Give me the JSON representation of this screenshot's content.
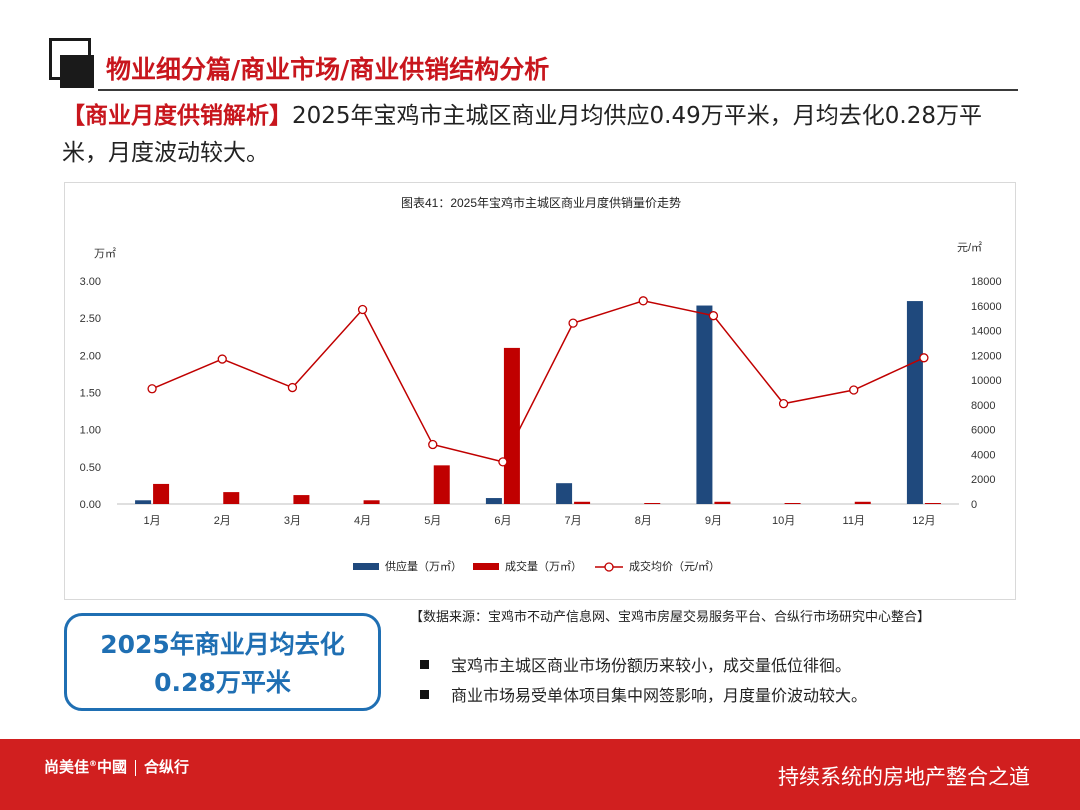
{
  "header": {
    "title": "物业细分篇/商业市场/商业供销结构分析"
  },
  "summary": {
    "tag": "【商业月度供销解析】",
    "text": "2025年宝鸡市主城区商业月均供应0.49万平米，月均去化0.28万平米，月度波动较大。"
  },
  "chart_data": {
    "type": "bar",
    "title": "图表41：2025年宝鸡市主城区商业月度供销量价走势",
    "categories": [
      "1月",
      "2月",
      "3月",
      "4月",
      "5月",
      "6月",
      "7月",
      "8月",
      "9月",
      "10月",
      "11月",
      "12月"
    ],
    "y_left_unit": "万㎡",
    "y_right_unit": "元/㎡",
    "y_left_ticks": [
      "0.00",
      "0.50",
      "1.00",
      "1.50",
      "2.00",
      "2.50",
      "3.00"
    ],
    "y_right_ticks": [
      "0",
      "2000",
      "4000",
      "6000",
      "8000",
      "10000",
      "12000",
      "14000",
      "16000",
      "18000"
    ],
    "ylim_left": [
      0,
      3
    ],
    "ylim_right": [
      0,
      18000
    ],
    "series": [
      {
        "name": "供应量（万㎡）",
        "type": "bar",
        "axis": "left",
        "color": "#1f497d",
        "values": [
          0.05,
          0,
          0,
          0,
          0,
          0.08,
          0.28,
          0,
          2.67,
          0,
          0,
          2.73
        ]
      },
      {
        "name": "成交量（万㎡）",
        "type": "bar",
        "axis": "left",
        "color": "#c00000",
        "values": [
          0.27,
          0.16,
          0.12,
          0.05,
          0.52,
          2.1,
          0.03,
          0.01,
          0.03,
          0.01,
          0.03,
          0.01
        ]
      },
      {
        "name": "成交均价（元/㎡）",
        "type": "line",
        "axis": "right",
        "color": "#c00000",
        "values": [
          9300,
          11700,
          9400,
          15700,
          4800,
          3400,
          14600,
          16400,
          15200,
          8100,
          9200,
          11800
        ]
      }
    ],
    "legend_position": "bottom",
    "grid": false
  },
  "source_note": "【数据来源：宝鸡市不动产信息网、宝鸡市房屋交易服务平台、合纵行市场研究中心整合】",
  "callout": {
    "line1": "2025年商业月均去化",
    "line2": "0.28万平米"
  },
  "bullets": [
    "宝鸡市主城区商业市场份额历来较小，成交量低位徘徊。",
    "商业市场易受单体项目集中网签影响，月度量价波动较大。"
  ],
  "footer": {
    "brand_main": "尚美佳",
    "brand_mark": "®",
    "brand_country": "中國",
    "brand_second": "合纵行",
    "slogan": "持续系统的房地产整合之道"
  },
  "colors": {
    "accent": "#c8161d",
    "supply": "#1f497d",
    "deal": "#c00000",
    "callout": "#1f6fb3",
    "footer": "#d11f1f"
  }
}
